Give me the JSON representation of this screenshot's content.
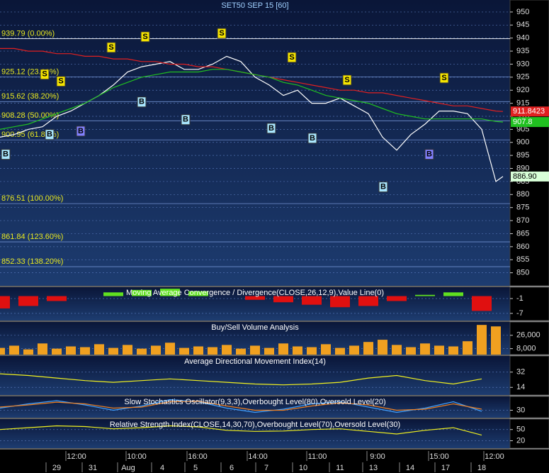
{
  "chart_data": [
    {
      "type": "line",
      "title": "SET50 SEP 15  [60]",
      "x": [
        0,
        2,
        4,
        6,
        8,
        10,
        12,
        14,
        16,
        18,
        20,
        22,
        24,
        26,
        28,
        30,
        32,
        34,
        36,
        38,
        40,
        42,
        44,
        46,
        48,
        50,
        52,
        54,
        56,
        58,
        60,
        62,
        64,
        66,
        68,
        70,
        71
      ],
      "xlim": [
        0,
        72
      ],
      "ylim": [
        845,
        954.6
      ],
      "yticks": [
        850,
        855,
        860,
        865,
        870,
        875,
        880,
        885,
        890,
        895,
        900,
        905,
        910,
        915,
        920,
        925,
        930,
        935,
        940,
        945,
        950
      ],
      "series": [
        {
          "color": "#ffffff",
          "values": [
            902,
            903,
            905,
            906,
            910,
            912,
            915,
            918,
            922,
            927,
            929,
            930,
            931,
            928,
            928,
            930,
            933,
            931,
            925,
            922,
            918,
            920,
            915,
            915,
            917,
            914,
            911,
            902,
            897,
            903,
            907,
            912,
            912,
            911,
            905,
            885,
            886.9
          ],
          "last_label": "886.90"
        },
        {
          "color": "#e02020",
          "values": [
            936,
            936,
            935,
            935,
            934,
            934,
            933,
            933,
            932,
            932,
            931,
            931,
            930,
            930,
            929,
            929,
            928,
            927,
            926,
            925,
            924,
            923,
            922,
            921,
            920,
            920,
            919,
            919,
            918,
            917,
            916,
            915,
            914,
            914,
            913,
            912,
            911.8423
          ]
        },
        {
          "color": "#20c020",
          "values": [
            905,
            906,
            907,
            909,
            911,
            913,
            915,
            918,
            921,
            923,
            925,
            926,
            927,
            927,
            927,
            928,
            928,
            927,
            926,
            925,
            923,
            922,
            920,
            918,
            917,
            916,
            915,
            913,
            911,
            910,
            909,
            909,
            909,
            909,
            909,
            908,
            907.8
          ]
        }
      ],
      "levels": [
        {
          "value": 939.79,
          "label": "939.79 (0.00%)"
        },
        {
          "value": 925.12,
          "label": "925.12 (23.60%)"
        },
        {
          "value": 915.62,
          "label": "915.62 (38.20%)"
        },
        {
          "value": 908.28,
          "label": "908.28 (50.00%)"
        },
        {
          "value": 900.95,
          "label": "900.95 (61.80%)"
        },
        {
          "value": 876.51,
          "label": "876.51 (100.00%)"
        },
        {
          "value": 861.84,
          "label": "861.84 (123.60%)"
        },
        {
          "value": 852.33,
          "label": "852.33 (138.20%)"
        }
      ],
      "signals": [
        {
          "x": 6.3,
          "y": 926.1,
          "label": "S",
          "color": "#f5e400"
        },
        {
          "x": 8.6,
          "y": 923.4,
          "label": "S",
          "color": "#f5e400"
        },
        {
          "x": 15.7,
          "y": 936.4,
          "label": "S",
          "color": "#f5e400"
        },
        {
          "x": 20.5,
          "y": 940.5,
          "label": "S",
          "color": "#f5e400"
        },
        {
          "x": 31.3,
          "y": 941.8,
          "label": "S",
          "color": "#f5e400"
        },
        {
          "x": 41.2,
          "y": 932.6,
          "label": "S",
          "color": "#f5e400"
        },
        {
          "x": 49.0,
          "y": 923.9,
          "label": "S",
          "color": "#f5e400"
        },
        {
          "x": 62.7,
          "y": 924.7,
          "label": "S",
          "color": "#f5e400"
        },
        {
          "x": 0.8,
          "y": 895.4,
          "label": "B",
          "color": "#a8e6ff"
        },
        {
          "x": 7.0,
          "y": 903.0,
          "label": "B",
          "color": "#a8e6ff"
        },
        {
          "x": 11.4,
          "y": 904.3,
          "label": "B",
          "color": "#8080ff"
        },
        {
          "x": 20.0,
          "y": 915.5,
          "label": "B",
          "color": "#a8e6ff"
        },
        {
          "x": 26.2,
          "y": 908.7,
          "label": "B",
          "color": "#a8e6ff"
        },
        {
          "x": 38.3,
          "y": 905.4,
          "label": "B",
          "color": "#a8e6ff"
        },
        {
          "x": 44.1,
          "y": 901.6,
          "label": "B",
          "color": "#a8e6ff"
        },
        {
          "x": 54.1,
          "y": 882.9,
          "label": "B",
          "color": "#a8e6ff"
        },
        {
          "x": 60.6,
          "y": 895.4,
          "label": "B",
          "color": "#8080ff"
        }
      ]
    },
    {
      "type": "bar",
      "title": "Moving Average Convergence / Divergence(CLOSE,26,12,9),Value Line(0)",
      "x": [
        0,
        4,
        8,
        12,
        16,
        20,
        24,
        28,
        32,
        36,
        40,
        44,
        48,
        52,
        56,
        60,
        64,
        68
      ],
      "xlim": [
        0,
        72
      ],
      "ylim": [
        -9.9,
        3.6
      ],
      "yticks": [
        -1,
        -7
      ],
      "color": "#60e020",
      "negative_color": "#e01010",
      "values": [
        -5,
        -4,
        -2,
        0,
        1.5,
        2.5,
        3,
        2,
        0,
        -1.5,
        -2.5,
        -3.5,
        -4.5,
        -4,
        -2,
        0.5,
        1.5,
        -6
      ]
    },
    {
      "type": "bar",
      "title": "Buy/Sell Volume Analysis",
      "x": [
        0,
        2,
        4,
        6,
        8,
        10,
        12,
        14,
        16,
        18,
        20,
        22,
        24,
        26,
        28,
        30,
        32,
        34,
        36,
        38,
        40,
        42,
        44,
        46,
        48,
        50,
        52,
        54,
        56,
        58,
        60,
        62,
        64,
        66,
        68,
        70
      ],
      "xlim": [
        0,
        72
      ],
      "ylim": [
        0,
        44000
      ],
      "yticks": [
        {
          "value": 26000,
          "label": "26,000"
        },
        {
          "value": 8000,
          "label": "8,000"
        }
      ],
      "color": "#f0a020",
      "values": [
        9000,
        12000,
        7000,
        15000,
        8000,
        11000,
        10000,
        14000,
        9000,
        13000,
        8000,
        12000,
        16000,
        9000,
        11000,
        10000,
        13000,
        8000,
        12000,
        9000,
        15000,
        11000,
        10000,
        14000,
        9000,
        12000,
        17000,
        20000,
        13000,
        10000,
        15000,
        12000,
        11000,
        18000,
        40000,
        38000
      ]
    },
    {
      "type": "line",
      "title": "Average Directional Movement Index(14)",
      "x": [
        0,
        4,
        8,
        12,
        16,
        20,
        24,
        28,
        32,
        36,
        40,
        44,
        48,
        52,
        56,
        60,
        64,
        68
      ],
      "xlim": [
        0,
        72
      ],
      "ylim": [
        5,
        51
      ],
      "yticks": [
        32,
        14
      ],
      "series": [
        {
          "color": "#f0f020",
          "values": [
            30,
            28,
            25,
            22,
            20,
            22,
            24,
            22,
            20,
            18,
            17,
            18,
            20,
            25,
            28,
            22,
            18,
            24
          ]
        }
      ]
    },
    {
      "type": "line",
      "title": "Slow Stochastics Oscillator(9,3,3),Overbought Level(80),Oversold Level(20)",
      "x": [
        0,
        4,
        8,
        12,
        16,
        20,
        24,
        28,
        32,
        36,
        40,
        44,
        48,
        52,
        56,
        60,
        64,
        68
      ],
      "xlim": [
        0,
        72
      ],
      "ylim": [
        -5,
        95
      ],
      "yticks": [
        30
      ],
      "series": [
        {
          "color": "#40a0ff",
          "values": [
            40,
            60,
            75,
            55,
            30,
            50,
            80,
            70,
            40,
            20,
            35,
            60,
            70,
            45,
            20,
            40,
            70,
            25
          ]
        },
        {
          "color": "#f08020",
          "values": [
            45,
            55,
            68,
            60,
            40,
            45,
            70,
            72,
            50,
            30,
            30,
            50,
            65,
            55,
            30,
            35,
            60,
            35
          ]
        }
      ]
    },
    {
      "type": "line",
      "title": "Relative Strength Index(CLOSE,14,30,70),Overbought Level(70),Oversold Level(30)",
      "x": [
        0,
        4,
        8,
        12,
        16,
        20,
        24,
        28,
        32,
        36,
        40,
        44,
        48,
        52,
        56,
        60,
        64,
        68
      ],
      "xlim": [
        0,
        72
      ],
      "ylim": [
        0,
        78
      ],
      "yticks": [
        50,
        20
      ],
      "series": [
        {
          "color": "#f0f020",
          "values": [
            50,
            55,
            60,
            58,
            52,
            55,
            60,
            57,
            48,
            45,
            46,
            50,
            52,
            45,
            38,
            48,
            55,
            35
          ]
        }
      ],
      "xticks": [
        {
          "value": 10.8,
          "label": "12:00"
        },
        {
          "value": 19.3,
          "label": "10:00"
        },
        {
          "value": 27.9,
          "label": "16:00"
        },
        {
          "value": 36.4,
          "label": "14:00"
        },
        {
          "value": 44.8,
          "label": "11:00"
        },
        {
          "value": 53.3,
          "label": "9:00"
        },
        {
          "value": 62.0,
          "label": "15:00"
        },
        {
          "value": 69.8,
          "label": "12:00"
        }
      ],
      "x2ticks": [
        {
          "value": 8.0,
          "label": "29"
        },
        {
          "value": 13.1,
          "label": "31"
        },
        {
          "value": 18.1,
          "label": "Aug"
        },
        {
          "value": 22.9,
          "label": "4"
        },
        {
          "value": 27.6,
          "label": "5"
        },
        {
          "value": 32.7,
          "label": "6"
        },
        {
          "value": 37.6,
          "label": "7"
        },
        {
          "value": 42.8,
          "label": "10"
        },
        {
          "value": 48.0,
          "label": "11"
        },
        {
          "value": 52.7,
          "label": "13"
        },
        {
          "value": 57.9,
          "label": "14"
        },
        {
          "value": 62.9,
          "label": "17"
        },
        {
          "value": 68.0,
          "label": "18"
        }
      ]
    }
  ]
}
